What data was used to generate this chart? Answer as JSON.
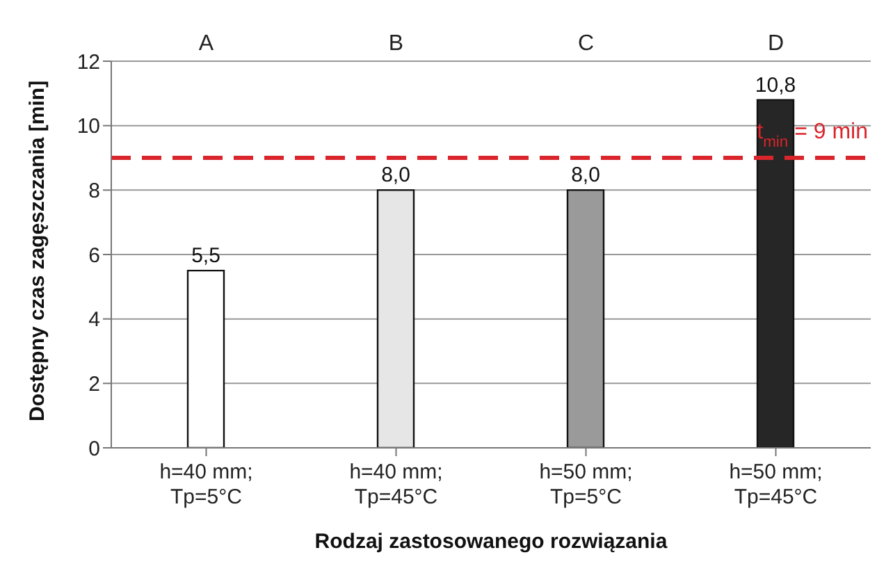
{
  "chart_data": {
    "type": "bar",
    "xlabel": "Rodzaj zastosowanego rozwiązania",
    "ylabel": "Dostępny czas zagęszczania [min]",
    "categories": [
      "h=40 mm; Tp=5°C",
      "h=40 mm; Tp=45°C",
      "h=50 mm; Tp=5°C",
      "h=50 mm; Tp=45°C"
    ],
    "values": [
      5.5,
      8.0,
      8.0,
      10.8
    ],
    "colors": [
      "#ffffff",
      "#e6e6e6",
      "#9a9a9a",
      "#262626"
    ],
    "value_labels": [
      "5,5",
      "8,0",
      "8,0",
      "10,8"
    ],
    "ylim": [
      0,
      12
    ],
    "yticks": [
      0,
      2,
      4,
      6,
      8,
      10,
      12
    ],
    "grid": "y",
    "ref_lines": [
      {
        "axis": "y",
        "value": 9,
        "label": "t$_{min}$ = 9 min",
        "color": "#d9252b",
        "line_style": "dashed"
      }
    ],
    "annotations": [
      "A",
      "B",
      "C",
      "D"
    ]
  }
}
